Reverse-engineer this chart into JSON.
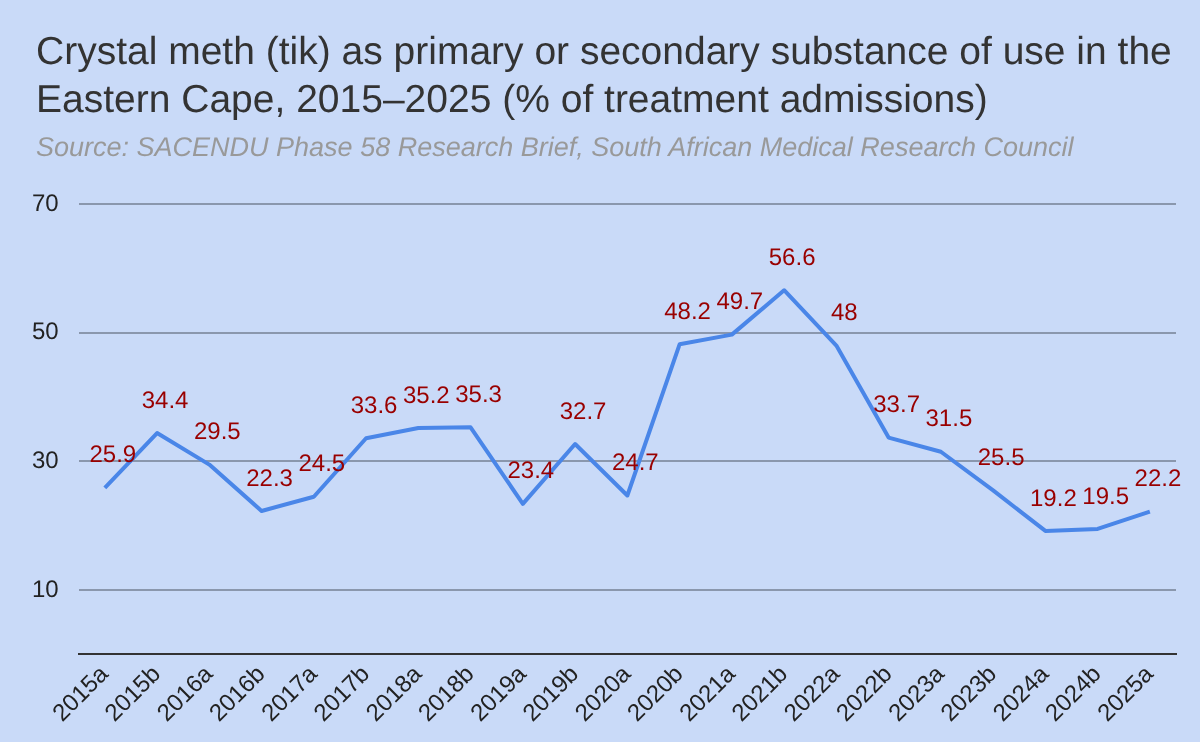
{
  "chart_data": {
    "type": "line",
    "title": "Crystal meth (tik) as primary or secondary substance of use in the Eastern Cape, 2015–2025 (% of treatment admissions)",
    "subtitle": "Source: SACENDU Phase 58 Research Brief, South African Medical Research Council",
    "categories": [
      "2015a",
      "2015b",
      "2016a",
      "2016b",
      "2017a",
      "2017b",
      "2018a",
      "2018b",
      "2019a",
      "2019b",
      "2020a",
      "2020b",
      "2021a",
      "2021b",
      "2022a",
      "2022b",
      "2023a",
      "2023b",
      "2024a",
      "2024b",
      "2025a"
    ],
    "series": [
      {
        "color": "#4a86e8",
        "values": [
          25.9,
          34.4,
          29.5,
          22.3,
          24.5,
          33.6,
          35.2,
          35.3,
          23.4,
          32.7,
          24.7,
          48.2,
          49.7,
          56.6,
          48,
          33.7,
          31.5,
          25.5,
          19.2,
          19.5,
          22.2
        ]
      }
    ],
    "ylim": [
      0,
      70
    ],
    "yticks": [
      10,
      30,
      50,
      70
    ],
    "grid": "y",
    "data_labels": true,
    "legend": false,
    "marker": "none",
    "line_style": "solid"
  }
}
